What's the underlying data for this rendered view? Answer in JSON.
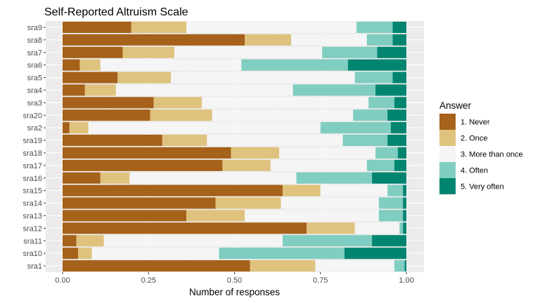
{
  "chart_data": {
    "type": "bar",
    "orientation": "horizontal",
    "stacked": true,
    "title": "Self-Reported Altruism Scale",
    "xlabel": "Number of responses",
    "ylabel": "",
    "xlim": [
      0,
      1
    ],
    "xticks": [
      "0.00",
      "0.25",
      "0.50",
      "0.75",
      "1.00"
    ],
    "grid": true,
    "legend": {
      "title": "Answer",
      "position": "right"
    },
    "categories": [
      "sra9",
      "sra8",
      "sra7",
      "sra6",
      "sra5",
      "sra4",
      "sra3",
      "sra20",
      "sra2",
      "sra19",
      "sra18",
      "sra17",
      "sra16",
      "sra15",
      "sra14",
      "sra13",
      "sra12",
      "sra11",
      "sra10",
      "sra1"
    ],
    "series": [
      {
        "name": "1. Never",
        "color": "#A6611A",
        "values": [
          0.2,
          0.53,
          0.175,
          0.05,
          0.16,
          0.065,
          0.265,
          0.255,
          0.02,
          0.29,
          0.49,
          0.465,
          0.11,
          0.64,
          0.445,
          0.36,
          0.71,
          0.04,
          0.045,
          0.545
        ]
      },
      {
        "name": "2. Once",
        "color": "#DFC27D",
        "values": [
          0.16,
          0.135,
          0.15,
          0.06,
          0.155,
          0.09,
          0.14,
          0.18,
          0.055,
          0.13,
          0.14,
          0.14,
          0.085,
          0.11,
          0.19,
          0.17,
          0.14,
          0.08,
          0.04,
          0.19
        ]
      },
      {
        "name": "3. More than once",
        "color": "#F5F5F5",
        "values": [
          0.495,
          0.22,
          0.43,
          0.41,
          0.535,
          0.515,
          0.485,
          0.41,
          0.675,
          0.395,
          0.28,
          0.28,
          0.485,
          0.195,
          0.285,
          0.39,
          0.13,
          0.52,
          0.37,
          0.23
        ]
      },
      {
        "name": "4. Often",
        "color": "#80CDC1",
        "values": [
          0.105,
          0.075,
          0.16,
          0.31,
          0.11,
          0.24,
          0.075,
          0.1,
          0.205,
          0.13,
          0.065,
          0.08,
          0.22,
          0.045,
          0.07,
          0.07,
          0.01,
          0.26,
          0.365,
          0.03
        ]
      },
      {
        "name": "5. Very often",
        "color": "#018571",
        "values": [
          0.04,
          0.04,
          0.085,
          0.17,
          0.04,
          0.09,
          0.035,
          0.055,
          0.045,
          0.055,
          0.025,
          0.035,
          0.1,
          0.01,
          0.01,
          0.01,
          0.01,
          0.1,
          0.18,
          0.005
        ]
      }
    ]
  }
}
